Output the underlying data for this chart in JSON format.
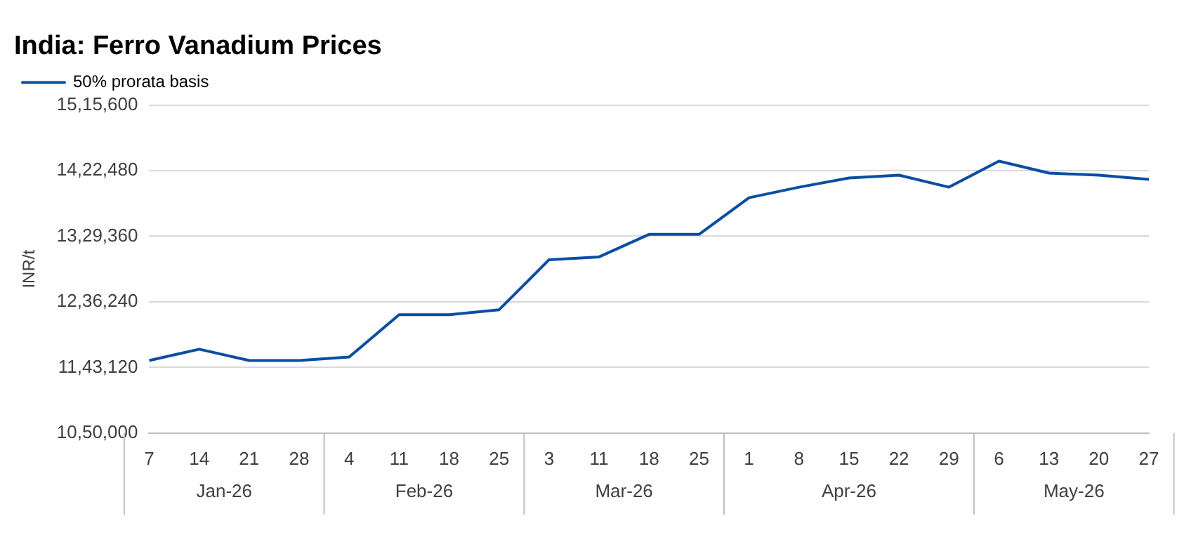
{
  "chart_data": {
    "type": "line",
    "title": "India: Ferro Vanadium Prices",
    "ylabel": "INR/t",
    "categories": [
      "7",
      "14",
      "21",
      "28",
      "4",
      "11",
      "18",
      "25",
      "3",
      "11",
      "18",
      "25",
      "1",
      "8",
      "15",
      "22",
      "29",
      "6",
      "13",
      "20",
      "27"
    ],
    "series": [
      {
        "name": "50% prorata basis",
        "color": "#0b4ea2",
        "values": [
          1153000,
          1169000,
          1153000,
          1153000,
          1158000,
          1218000,
          1218000,
          1225000,
          1296000,
          1300000,
          1332000,
          1332000,
          1384000,
          1399000,
          1412000,
          1416000,
          1399000,
          1436000,
          1419000,
          1416000,
          1410000
        ]
      }
    ],
    "ylim": [
      1050000,
      1515600
    ],
    "yticks": [
      {
        "value": 1050000,
        "label": "10,50,000"
      },
      {
        "value": 1143120,
        "label": "11,43,120"
      },
      {
        "value": 1236240,
        "label": "12,36,240"
      },
      {
        "value": 1329360,
        "label": "13,29,360"
      },
      {
        "value": 1422480,
        "label": "14,22,480"
      },
      {
        "value": 1515600,
        "label": "15,15,600"
      }
    ],
    "annotations": [
      "Jan-26",
      "Feb-26",
      "Mar-26",
      "Apr-26",
      "May-26"
    ],
    "grid": "y",
    "legend": "top left",
    "marker": "none",
    "line_style": "solid"
  }
}
